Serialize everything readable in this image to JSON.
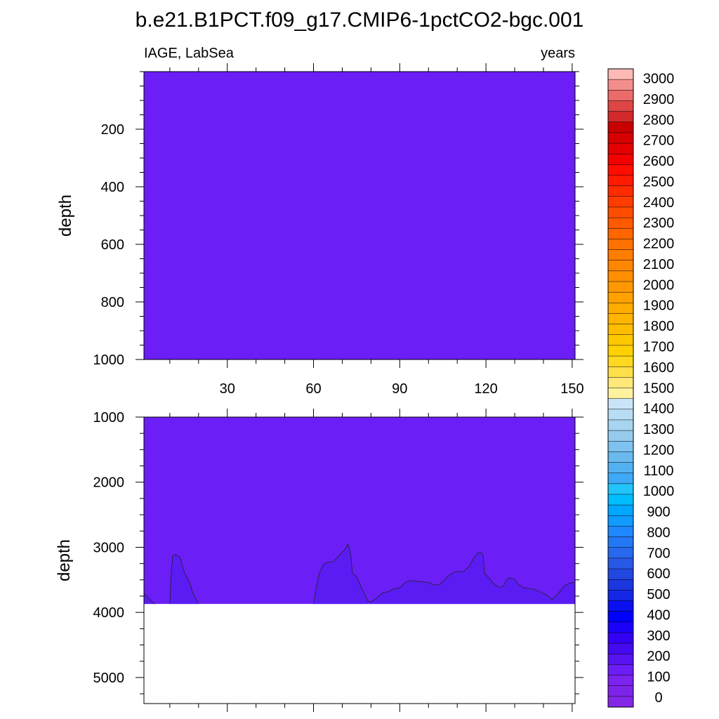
{
  "title": "b.e21.B1PCT.f09_g17.CMIP6-1pctCO2-bgc.001",
  "colors": {
    "background": "#6b1ef5",
    "contour_band": "#5a1cf3",
    "missing": "#ffffff",
    "frame": "#000000"
  },
  "chart_data": [
    {
      "type": "heatmap",
      "panel": "upper",
      "left_string": "IAGE, LabSea",
      "right_string": "years",
      "xlabel": "",
      "ylabel": "depth",
      "xlim": [
        1,
        151
      ],
      "ylim": [
        1000,
        0
      ],
      "x_ticks": [
        30,
        60,
        90,
        120,
        150
      ],
      "y_ticks": [
        200,
        400,
        600,
        800,
        1000
      ],
      "field_value_range": [
        0,
        100
      ],
      "contours": []
    },
    {
      "type": "heatmap",
      "panel": "lower",
      "xlabel": "",
      "ylabel": "depth",
      "xlim": [
        1,
        151
      ],
      "ylim": [
        5400,
        1000
      ],
      "x_ticks": [
        30,
        60,
        90,
        120,
        150
      ],
      "y_ticks": [
        1000,
        2000,
        3000,
        4000,
        5000
      ],
      "field_value_range": [
        0,
        200
      ],
      "missing_below_depth": 3870,
      "contours": [
        {
          "level": 100,
          "points": [
            [
              1,
              3700
            ],
            [
              4,
              3850
            ],
            [
              5,
              3870
            ]
          ]
        },
        {
          "level": 100,
          "points": [
            [
              10,
              3870
            ],
            [
              10.5,
              3400
            ],
            [
              11,
              3130
            ],
            [
              12,
              3110
            ],
            [
              13.5,
              3150
            ],
            [
              15,
              3380
            ],
            [
              17,
              3550
            ],
            [
              18,
              3700
            ],
            [
              20,
              3870
            ]
          ]
        },
        {
          "level": 100,
          "points": [
            [
              60,
              3870
            ],
            [
              61,
              3600
            ],
            [
              62,
              3400
            ],
            [
              63.5,
              3260
            ],
            [
              65,
              3230
            ],
            [
              67,
              3220
            ],
            [
              69,
              3120
            ],
            [
              71,
              3030
            ],
            [
              72,
              2950
            ],
            [
              73,
              3120
            ],
            [
              73.5,
              3390
            ],
            [
              75,
              3450
            ],
            [
              77,
              3650
            ],
            [
              79,
              3830
            ],
            [
              80,
              3840
            ],
            [
              82,
              3780
            ],
            [
              84,
              3700
            ],
            [
              86,
              3680
            ],
            [
              88,
              3640
            ],
            [
              90,
              3620
            ],
            [
              92,
              3540
            ],
            [
              94,
              3510
            ],
            [
              96,
              3520
            ],
            [
              98,
              3530
            ],
            [
              100,
              3540
            ],
            [
              102,
              3580
            ],
            [
              104,
              3570
            ],
            [
              106,
              3480
            ],
            [
              108,
              3400
            ],
            [
              110,
              3370
            ],
            [
              112,
              3380
            ],
            [
              114,
              3300
            ],
            [
              116,
              3150
            ],
            [
              117,
              3090
            ],
            [
              118,
              3080
            ],
            [
              119,
              3120
            ],
            [
              119.5,
              3400
            ],
            [
              121,
              3470
            ],
            [
              123,
              3570
            ],
            [
              125,
              3620
            ],
            [
              126,
              3600
            ],
            [
              127,
              3510
            ],
            [
              128,
              3470
            ],
            [
              130,
              3490
            ],
            [
              131,
              3560
            ],
            [
              133,
              3620
            ],
            [
              135,
              3630
            ],
            [
              137,
              3650
            ],
            [
              139,
              3690
            ],
            [
              141,
              3730
            ],
            [
              143,
              3800
            ],
            [
              145,
              3720
            ],
            [
              147,
              3600
            ],
            [
              149,
              3550
            ],
            [
              151,
              3540
            ]
          ]
        }
      ]
    }
  ],
  "colorbar": {
    "labels": [
      "3000",
      "2900",
      "2800",
      "2700",
      "2600",
      "2500",
      "2400",
      "2300",
      "2200",
      "2100",
      "2000",
      "1900",
      "1800",
      "1700",
      "1600",
      "1500",
      "1400",
      "1300",
      "1200",
      "1100",
      "1000",
      "900",
      "800",
      "700",
      "600",
      "500",
      "400",
      "300",
      "200",
      "100",
      "0"
    ],
    "colors": [
      "#fdb9b5",
      "#f48e8c",
      "#ea6b69",
      "#dd4645",
      "#d22a2a",
      "#c80000",
      "#d60000",
      "#e40000",
      "#f30000",
      "#ff0d00",
      "#ff1a00",
      "#ff2c00",
      "#ff3d00",
      "#ff4d00",
      "#ff5a00",
      "#ff6600",
      "#ff7100",
      "#ff7d00",
      "#ff8600",
      "#ff8f00",
      "#ff9800",
      "#ffa200",
      "#ffab00",
      "#ffb400",
      "#ffbd00",
      "#ffc700",
      "#ffd100",
      "#ffd920",
      "#ffe04a",
      "#ffe87a",
      "#fff29f",
      "#c9e5f7",
      "#b8dcf3",
      "#a7d4f1",
      "#96cbee",
      "#7ec3ef",
      "#6ab9ef",
      "#53b1f1",
      "#3ea9f6",
      "#21c4fb",
      "#00bdff",
      "#00a7ff",
      "#0f9bff",
      "#2088ff",
      "#2478f6",
      "#2768ee",
      "#2858e6",
      "#2248e2",
      "#1b37e0",
      "#1427e6",
      "#0a10f0",
      "#0000ff",
      "#1b00fa",
      "#3300f3",
      "#4509f0",
      "#5712f0",
      "#6a1ef5",
      "#7c22ef",
      "#7e24ea",
      "#8428e6"
    ]
  }
}
